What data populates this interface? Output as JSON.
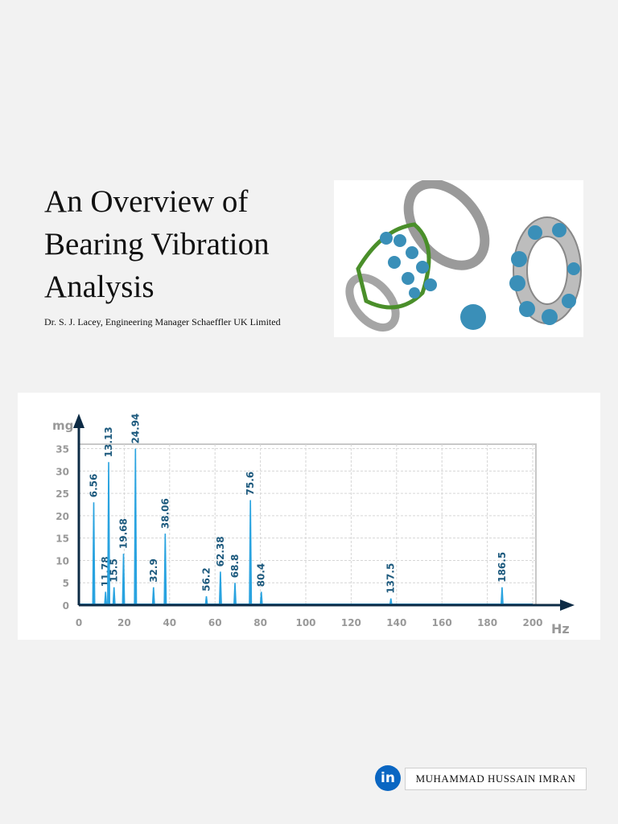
{
  "header": {
    "title_lines": [
      "An Overview of",
      "Bearing Vibration",
      "Analysis"
    ],
    "author": "Dr. S. J. Lacey, Engineering Manager Schaeffler UK Limited"
  },
  "chart_data": {
    "type": "spectrum",
    "ylabel": "mg",
    "xlabel": "Hz",
    "x": [
      6.56,
      11.78,
      13.13,
      15.5,
      19.68,
      24.94,
      32.9,
      38.06,
      56.2,
      62.38,
      68.8,
      75.6,
      80.4,
      137.5,
      186.5
    ],
    "values": [
      23,
      3,
      32,
      4,
      11.5,
      35,
      4,
      16,
      2,
      7.5,
      5,
      23.5,
      3,
      1.5,
      4
    ],
    "color": "#29a3e0",
    "xlim": [
      0,
      200
    ],
    "ylim": [
      0,
      36
    ],
    "xticks": [
      0,
      20,
      40,
      60,
      80,
      100,
      120,
      140,
      160,
      180,
      200
    ],
    "yticks": [
      0,
      5,
      10,
      15,
      20,
      25,
      30,
      35
    ],
    "grid": true
  },
  "footer": {
    "icon": "in",
    "name": "MUHAMMAD HUSSAIN IMRAN"
  }
}
